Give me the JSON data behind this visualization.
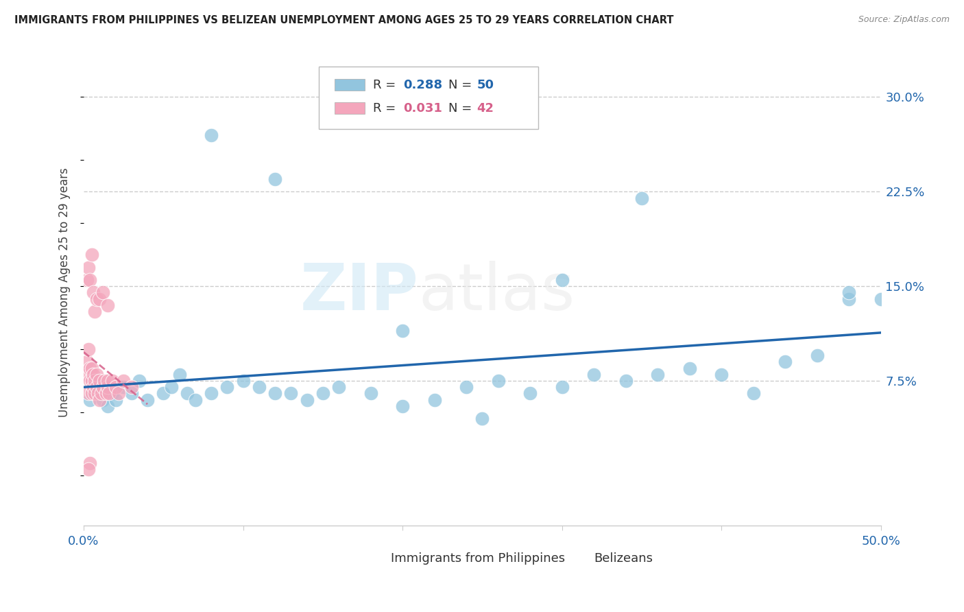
{
  "title": "IMMIGRANTS FROM PHILIPPINES VS BELIZEAN UNEMPLOYMENT AMONG AGES 25 TO 29 YEARS CORRELATION CHART",
  "source": "Source: ZipAtlas.com",
  "ylabel": "Unemployment Among Ages 25 to 29 years",
  "ytick_labels": [
    "7.5%",
    "15.0%",
    "22.5%",
    "30.0%"
  ],
  "ytick_values": [
    0.075,
    0.15,
    0.225,
    0.3
  ],
  "xlim": [
    0.0,
    0.5
  ],
  "ylim": [
    -0.04,
    0.33
  ],
  "legend_r1_label": "R = ",
  "legend_r1_val": "0.288",
  "legend_n1_label": "N = ",
  "legend_n1_val": "50",
  "legend_r2_label": "R = ",
  "legend_r2_val": "0.031",
  "legend_n2_label": "N = ",
  "legend_n2_val": "42",
  "color_blue": "#92c5de",
  "color_pink": "#f4a6bc",
  "trendline_blue": "#2166ac",
  "trendline_pink": "#d6608a",
  "background_color": "#ffffff",
  "watermark_zip": "ZIP",
  "watermark_atlas": "atlas",
  "blue_x": [
    0.004,
    0.006,
    0.008,
    0.01,
    0.012,
    0.015,
    0.018,
    0.02,
    0.025,
    0.03,
    0.035,
    0.04,
    0.05,
    0.055,
    0.06,
    0.065,
    0.07,
    0.08,
    0.09,
    0.1,
    0.11,
    0.12,
    0.13,
    0.14,
    0.15,
    0.16,
    0.18,
    0.2,
    0.22,
    0.24,
    0.26,
    0.28,
    0.3,
    0.32,
    0.34,
    0.36,
    0.38,
    0.4,
    0.42,
    0.44,
    0.46,
    0.48,
    0.5,
    0.2,
    0.12,
    0.3,
    0.48,
    0.08,
    0.35,
    0.25
  ],
  "blue_y": [
    0.06,
    0.065,
    0.07,
    0.065,
    0.06,
    0.055,
    0.065,
    0.06,
    0.07,
    0.065,
    0.075,
    0.06,
    0.065,
    0.07,
    0.08,
    0.065,
    0.06,
    0.065,
    0.07,
    0.075,
    0.07,
    0.065,
    0.065,
    0.06,
    0.065,
    0.07,
    0.065,
    0.055,
    0.06,
    0.07,
    0.075,
    0.065,
    0.07,
    0.08,
    0.075,
    0.08,
    0.085,
    0.08,
    0.065,
    0.09,
    0.095,
    0.14,
    0.14,
    0.115,
    0.235,
    0.155,
    0.145,
    0.27,
    0.22,
    0.045
  ],
  "pink_x": [
    0.001,
    0.002,
    0.003,
    0.003,
    0.004,
    0.004,
    0.005,
    0.005,
    0.005,
    0.006,
    0.006,
    0.007,
    0.007,
    0.008,
    0.008,
    0.009,
    0.01,
    0.01,
    0.011,
    0.012,
    0.013,
    0.014,
    0.015,
    0.015,
    0.016,
    0.018,
    0.02,
    0.022,
    0.025,
    0.03,
    0.002,
    0.003,
    0.004,
    0.005,
    0.006,
    0.007,
    0.008,
    0.01,
    0.012,
    0.015,
    0.004,
    0.003
  ],
  "pink_y": [
    0.08,
    0.09,
    0.1,
    0.065,
    0.075,
    0.085,
    0.065,
    0.075,
    0.085,
    0.07,
    0.08,
    0.065,
    0.075,
    0.07,
    0.08,
    0.065,
    0.06,
    0.075,
    0.065,
    0.07,
    0.075,
    0.065,
    0.07,
    0.075,
    0.065,
    0.075,
    0.07,
    0.065,
    0.075,
    0.07,
    0.155,
    0.165,
    0.155,
    0.175,
    0.145,
    0.13,
    0.14,
    0.14,
    0.145,
    0.135,
    0.01,
    0.005
  ]
}
